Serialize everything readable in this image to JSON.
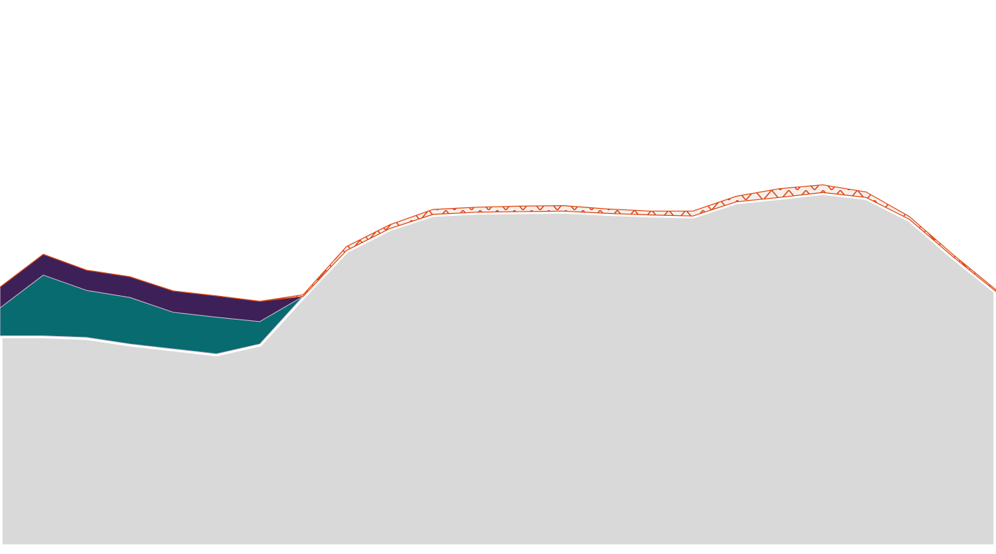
{
  "chart_data": {
    "type": "area",
    "stacked": true,
    "title": "",
    "xlabel": "",
    "ylabel": "",
    "axes_visible": false,
    "grid": false,
    "legend": "none",
    "x": [
      0,
      1,
      2,
      3,
      4,
      5,
      6,
      7,
      8,
      9,
      10,
      11,
      12,
      13,
      14,
      15,
      16,
      17,
      18,
      19,
      20,
      21,
      22,
      23
    ],
    "ylim": [
      0,
      100
    ],
    "series": [
      {
        "color": "#d9d9d9",
        "pattern": "solid",
        "values": [
          38.6,
          38.6,
          38.3,
          37.1,
          36.2,
          35.3,
          37.1,
          45.8,
          54.2,
          58.2,
          60.8,
          61.2,
          61.3,
          61.4,
          61.0,
          60.7,
          60.5,
          63.1,
          63.9,
          64.8,
          63.9,
          59.9,
          53.1,
          46.7
        ]
      },
      {
        "color": "#076b70",
        "pattern": "solid",
        "values": [
          5.1,
          11.1,
          8.6,
          8.5,
          6.7,
          6.7,
          4.1,
          0,
          0,
          0,
          0,
          0,
          0,
          0,
          0,
          0,
          0,
          0,
          0,
          0,
          0,
          0,
          0,
          0
        ]
      },
      {
        "color": "#3d2057",
        "pattern": "solid",
        "values": [
          3.8,
          3.8,
          3.7,
          3.8,
          3.9,
          3.9,
          3.7,
          0,
          0,
          0,
          0,
          0,
          0,
          0,
          0,
          0,
          0,
          0,
          0,
          0,
          0,
          0,
          0,
          0
        ]
      },
      {
        "color": "#e0440e",
        "pattern": "hatched",
        "values": [
          0,
          0,
          0,
          0,
          0,
          0,
          0,
          0.3,
          0.7,
          0.7,
          0.9,
          0.9,
          1.0,
          1.0,
          0.8,
          0.7,
          0.9,
          1.0,
          1.6,
          1.4,
          1.0,
          0.5,
          0.4,
          0.3
        ]
      }
    ]
  }
}
